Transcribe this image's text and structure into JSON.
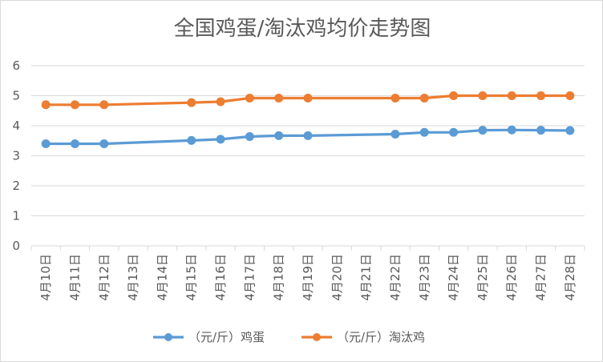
{
  "chart_data": {
    "type": "line",
    "title": "全国鸡蛋/淘汰鸡均价走势图",
    "xlabel": "",
    "ylabel": "",
    "categories": [
      "4月10日",
      "4月11日",
      "4月12日",
      "4月13日",
      "4月14日",
      "4月15日",
      "4月16日",
      "4月17日",
      "4月18日",
      "4月19日",
      "4月20日",
      "4月21日",
      "4月22日",
      "4月23日",
      "4月24日",
      "4月25日",
      "4月26日",
      "4月27日",
      "4月28日"
    ],
    "ylim": [
      0,
      6
    ],
    "yticks": [
      "0",
      "1",
      "2",
      "3",
      "4",
      "5",
      "6"
    ],
    "grid": true,
    "legend": "bottom",
    "series": [
      {
        "name": "（元/斤）鸡蛋",
        "color": "#5b9bd5",
        "values": [
          3.4,
          3.4,
          3.4,
          null,
          null,
          3.51,
          3.55,
          3.64,
          3.67,
          3.67,
          null,
          null,
          3.72,
          3.78,
          3.78,
          3.85,
          3.86,
          3.85,
          3.84
        ]
      },
      {
        "name": "（元/斤）淘汰鸡",
        "color": "#ed7d31",
        "values": [
          4.7,
          4.7,
          4.7,
          null,
          null,
          4.77,
          4.8,
          4.92,
          4.92,
          4.92,
          null,
          null,
          4.92,
          4.92,
          5.0,
          5.0,
          5.0,
          5.0,
          5.0
        ]
      }
    ]
  }
}
